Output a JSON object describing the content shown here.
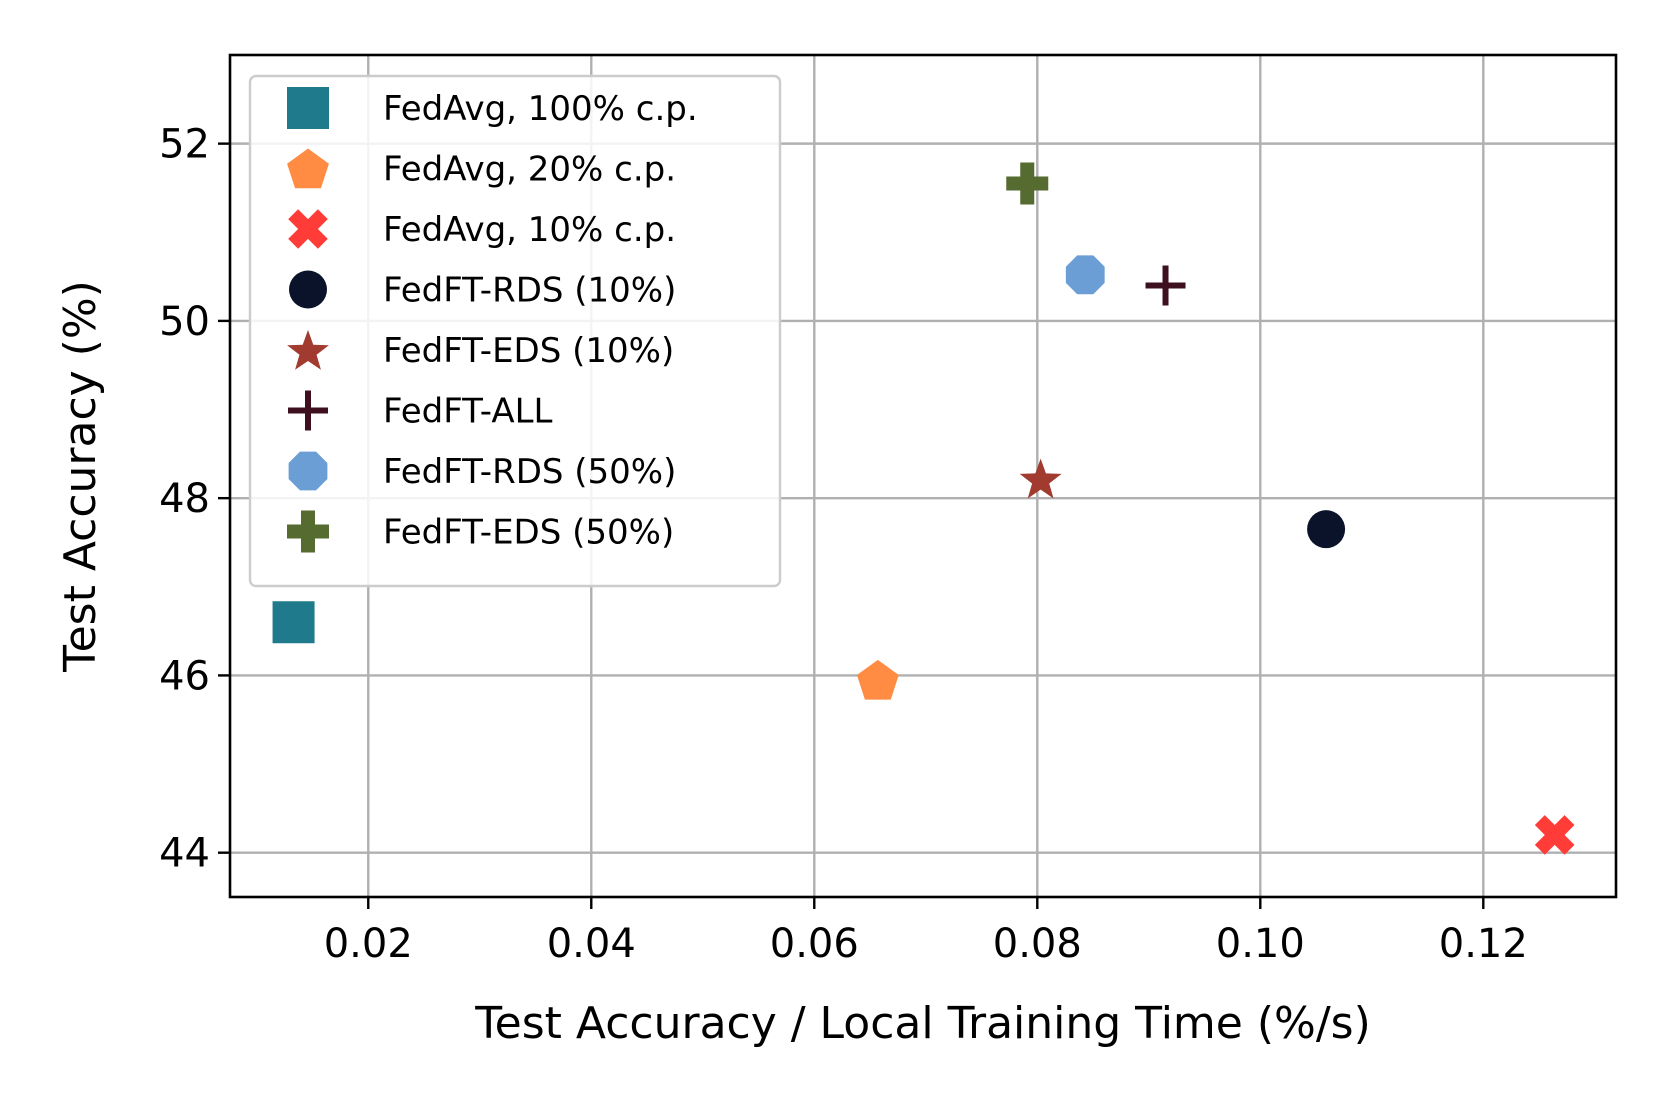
{
  "chart_data": {
    "type": "scatter",
    "title": "",
    "xlabel": "Test Accuracy / Local Training Time (%/s)",
    "ylabel": "Test Accuracy (%)",
    "xlim": [
      0.0076,
      0.1319
    ],
    "ylim": [
      43.5,
      53.0
    ],
    "xticks": [
      0.02,
      0.04,
      0.06,
      0.08,
      0.1,
      0.12
    ],
    "xtick_labels": [
      "0.02",
      "0.04",
      "0.06",
      "0.08",
      "0.10",
      "0.12"
    ],
    "yticks": [
      44,
      46,
      48,
      50,
      52
    ],
    "ytick_labels": [
      "44",
      "46",
      "48",
      "50",
      "52"
    ],
    "grid": true,
    "legend_position": "upper-left",
    "series": [
      {
        "name": "FedAvg, 100% c.p.",
        "marker": "square",
        "color": "#1f7a8c",
        "x": [
          0.0133
        ],
        "y": [
          46.6
        ]
      },
      {
        "name": "FedAvg, 20% c.p.",
        "marker": "pentagon",
        "color": "#ff8c42",
        "x": [
          0.0657
        ],
        "y": [
          45.95
        ]
      },
      {
        "name": "FedAvg, 10% c.p.",
        "marker": "x-filled",
        "color": "#ff3c38",
        "x": [
          0.1264
        ],
        "y": [
          44.2
        ]
      },
      {
        "name": "FedFT-RDS (10%)",
        "marker": "circle",
        "color": "#0b132b",
        "x": [
          0.1059
        ],
        "y": [
          47.65
        ]
      },
      {
        "name": "FedFT-EDS (10%)",
        "marker": "star",
        "color": "#a23b2f",
        "x": [
          0.0803
        ],
        "y": [
          48.22
        ]
      },
      {
        "name": "FedFT-ALL",
        "marker": "plus",
        "color": "#3e0f1f",
        "x": [
          0.0915
        ],
        "y": [
          50.4
        ]
      },
      {
        "name": "FedFT-RDS (50%)",
        "marker": "octagon",
        "color": "#6b9ed4",
        "x": [
          0.0843
        ],
        "y": [
          50.52
        ]
      },
      {
        "name": "FedFT-EDS (50%)",
        "marker": "plus-filled",
        "color": "#556b2f",
        "x": [
          0.0791
        ],
        "y": [
          51.55
        ]
      }
    ]
  }
}
